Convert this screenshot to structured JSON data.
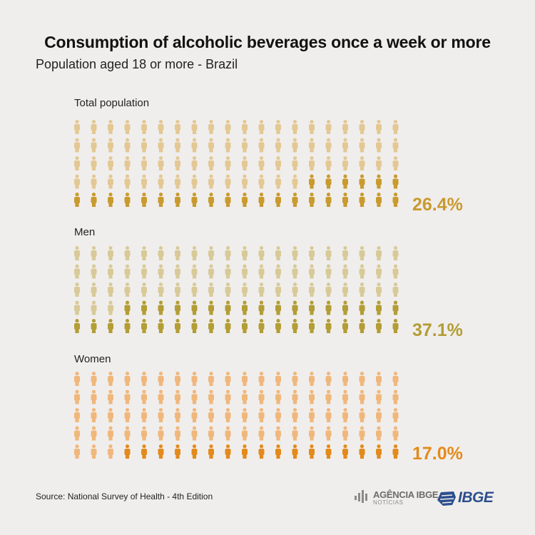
{
  "title": "Consumption of alcoholic beverages once a week or more",
  "subtitle": "Population aged 18 or more - Brazil",
  "source": "Source: National Survey of Health - 4th Edition",
  "logos": {
    "agencia_name": "AGÊNCIA IBGE",
    "agencia_sub": "NOTÍCIAS",
    "ibge": "IBGE"
  },
  "chart_data": {
    "type": "pictogram",
    "rows": 5,
    "columns": 20,
    "icon": "person-icon",
    "groups": [
      {
        "label": "Total population",
        "value": 26.4,
        "value_label": "26.4%",
        "highlight_color": "#c99a2e",
        "base_color": "#e3c894"
      },
      {
        "label": "Men",
        "value": 37.1,
        "value_label": "37.1%",
        "highlight_color": "#b39d35",
        "base_color": "#d8ca98"
      },
      {
        "label": "Women",
        "value": 17.0,
        "value_label": "17.0%",
        "highlight_color": "#e38a1c",
        "base_color": "#f0b77c"
      }
    ]
  }
}
